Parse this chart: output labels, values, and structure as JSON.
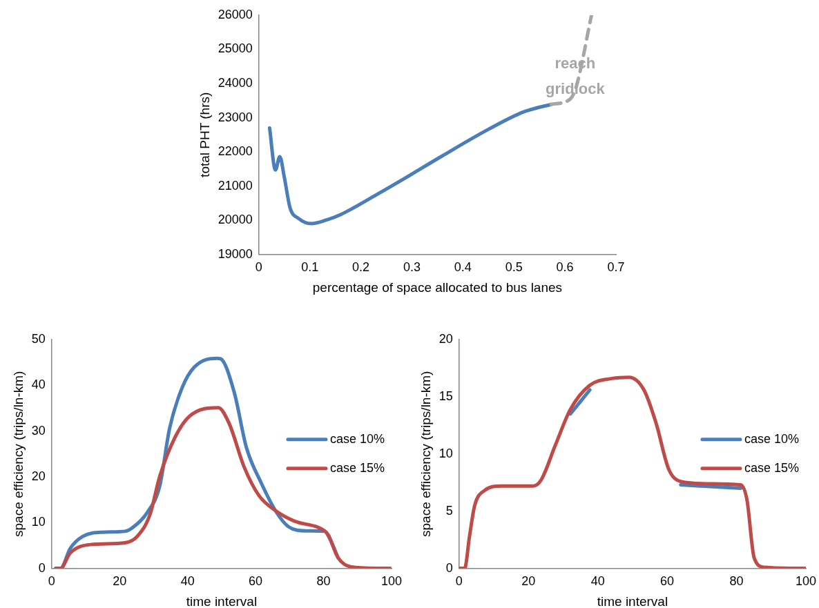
{
  "chart_data": [
    {
      "type": "line",
      "xlabel": "percentage of space allocated to bus lanes",
      "ylabel": "total PHT (hrs)",
      "xlim": [
        0,
        0.7
      ],
      "xticks": [
        0,
        0.1,
        0.2,
        0.3,
        0.4,
        0.5,
        0.6,
        0.7
      ],
      "ylim": [
        19000,
        26000
      ],
      "yticks": [
        19000,
        20000,
        21000,
        22000,
        23000,
        24000,
        25000,
        26000
      ],
      "grid": false,
      "legend": false,
      "line_style": "solid",
      "marker": "none",
      "series": [
        {
          "color": "#4a7ebb",
          "x": [
            0.021,
            0.0325,
            0.041,
            0.05,
            0.061,
            0.078,
            0.103,
            0.133,
            0.161,
            0.217,
            0.282,
            0.357,
            0.45,
            0.519,
            0.573
          ],
          "values": [
            22700,
            21470,
            21860,
            21250,
            20370,
            20050,
            19900,
            20010,
            20170,
            20630,
            21190,
            21860,
            22660,
            23170,
            23390
          ]
        },
        {
          "color": "#a6a6a6",
          "line_style": "dashed",
          "x": [
            0.573,
            0.61,
            0.622,
            0.652
          ],
          "values": [
            23390,
            23540,
            23900,
            26000
          ]
        }
      ],
      "annotations": [
        {
          "text": "reach gridlock",
          "x": 0.62,
          "y": 24200
        }
      ]
    },
    {
      "type": "line",
      "xlabel": "time interval",
      "ylabel": "space efficiency (trips/ln-km)",
      "xlim": [
        0,
        100
      ],
      "xticks": [
        0,
        20,
        40,
        60,
        80,
        100
      ],
      "ylim": [
        0,
        50
      ],
      "yticks": [
        0,
        10,
        20,
        30,
        40,
        50
      ],
      "grid": false,
      "legend": "right",
      "line_style": "solid",
      "marker": "none",
      "series": [
        {
          "name": "case 10%",
          "color": "#4a7ebb",
          "x": [
            1.2,
            2.6,
            5.5,
            9.2,
            15,
            21.6,
            23.8,
            28.2,
            31.8,
            34.7,
            38.4,
            42,
            48.6,
            49.7,
            53.7,
            57.3,
            61.7,
            66.1,
            69.7,
            74.8,
            80.3,
            81.4,
            84.3
          ],
          "values": [
            0,
            0,
            4.4,
            7.0,
            7.9,
            8.1,
            8.9,
            12.3,
            18.0,
            30.6,
            39.5,
            44.0,
            45.9,
            45.8,
            38.5,
            26.4,
            18.6,
            12.3,
            9.1,
            8.2,
            8.1,
            7.1,
            2.3
          ]
        },
        {
          "name": "case 15%",
          "color": "#be4b48",
          "x": [
            1.2,
            2.6,
            5.5,
            11.4,
            21.6,
            25.2,
            28.9,
            31.8,
            36.2,
            40.5,
            49,
            52.2,
            56.6,
            61,
            66.1,
            71.2,
            80.3,
            81.4,
            84.3,
            89.4,
            99.6
          ],
          "values": [
            0,
            0,
            3.4,
            5.2,
            5.6,
            7.0,
            11.7,
            20.1,
            28.5,
            33.2,
            35.1,
            31.7,
            22.2,
            15.9,
            12.5,
            10.4,
            8.2,
            7.3,
            2.3,
            0.2,
            0
          ]
        }
      ]
    },
    {
      "type": "line",
      "xlabel": "time interval",
      "ylabel": "space efficiency (trips/ln-km)",
      "xlim": [
        0,
        100
      ],
      "xticks": [
        0,
        20,
        40,
        60,
        80,
        100
      ],
      "ylim": [
        0,
        20
      ],
      "yticks": [
        0,
        5,
        10,
        15,
        20
      ],
      "grid": false,
      "legend": "right",
      "line_style": "solid",
      "marker": "none",
      "series": [
        {
          "name": "case 10%",
          "color": "#4a7ebb",
          "x": [
            32.1,
            37.7,
            null,
            63.9,
            72.4,
            81.2
          ],
          "values": [
            13.5,
            15.6,
            null,
            7.3,
            7.15,
            7.0
          ]
        },
        {
          "name": "case 15%",
          "color": "#be4b48",
          "x": [
            0.2,
            1.6,
            3.0,
            4.5,
            7.3,
            12.3,
            21.4,
            23.6,
            27.8,
            32.1,
            37.7,
            44.1,
            49,
            53.3,
            56.8,
            60.4,
            63.9,
            72.4,
            81.2,
            83,
            85.1,
            88,
            100
          ],
          "values": [
            0,
            0,
            2.8,
            5.5,
            6.8,
            7.2,
            7.2,
            7.7,
            10.8,
            13.9,
            16.0,
            16.6,
            16.7,
            15.6,
            12.7,
            8.7,
            7.6,
            7.4,
            7.3,
            6.0,
            0.9,
            0.1,
            0
          ]
        }
      ]
    }
  ]
}
